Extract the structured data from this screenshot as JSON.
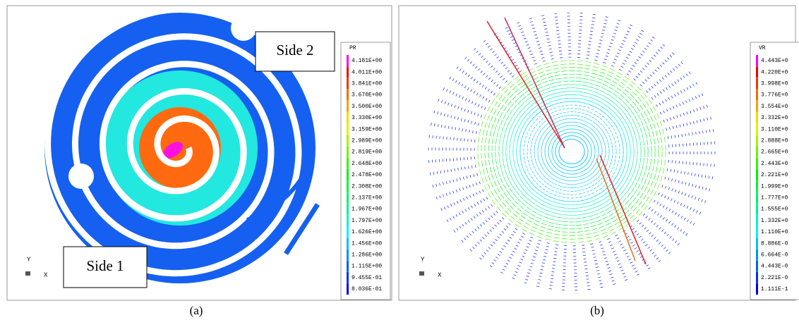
{
  "panels": [
    {
      "caption": "(a)",
      "side_labels": [
        "Side 2",
        "Side 1"
      ],
      "axis": {
        "y": "Y",
        "x": "X"
      },
      "legend": {
        "title": "PR",
        "labels": [
          "4.181E+00",
          "4.011E+00",
          "3.841E+00",
          "3.670E+00",
          "3.500E+00",
          "3.330E+00",
          "3.159E+00",
          "2.989E+00",
          "2.819E+00",
          "2.648E+00",
          "2.478E+00",
          "2.308E+00",
          "2.137E+00",
          "1.967E+00",
          "1.797E+00",
          "1.626E+00",
          "1.456E+00",
          "1.286E+00",
          "1.115E+00",
          "9.455E-01",
          "8.036E-01"
        ]
      }
    },
    {
      "caption": "(b)",
      "axis": {
        "y": "Y",
        "x": "X"
      },
      "legend": {
        "title": "VR",
        "labels": [
          "4.443E+0",
          "4.220E+0",
          "3.998E+0",
          "3.776E+0",
          "3.554E+0",
          "3.332E+0",
          "3.110E+0",
          "2.888E+0",
          "2.665E+0",
          "2.443E+0",
          "2.221E+0",
          "1.999E+0",
          "1.777E+0",
          "1.555E+0",
          "1.332E+0",
          "1.110E+0",
          "8.886E-0",
          "6.664E-0",
          "4.443E-0",
          "2.221E-0",
          "1.111E-1"
        ]
      }
    }
  ]
}
